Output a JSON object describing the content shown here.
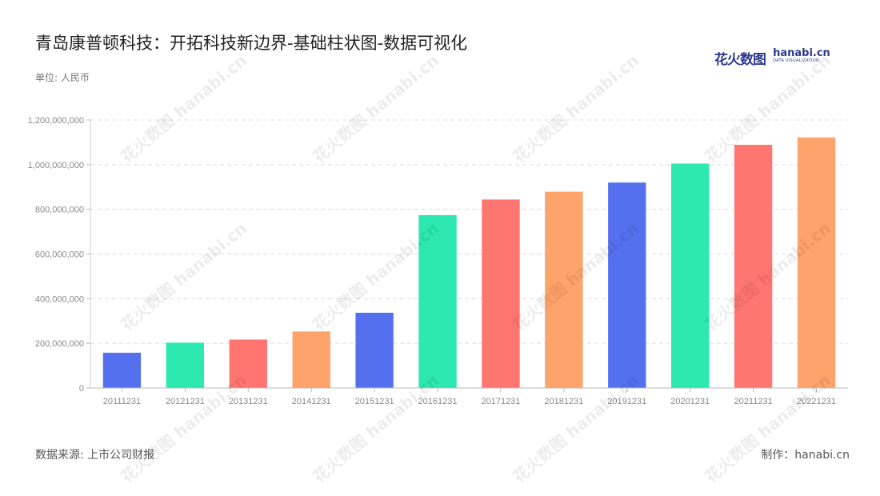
{
  "title": "青岛康普顿科技：开拓科技新边界-基础柱状图-数据可视化",
  "unit_label": "单位: 人民币",
  "logo": {
    "cn": "花火数图",
    "en": "hanabi.cn",
    "en_sub": "DATA VISUALIZATION"
  },
  "watermark": "花火数图 hanabi.cn",
  "source_label": "数据来源: 上市公司财报",
  "credit_label": "制作：hanabi.cn",
  "colors": [
    "#5470ee",
    "#2de8b0",
    "#ff7570",
    "#ffa36c"
  ],
  "chart_data": {
    "type": "bar",
    "title": "",
    "xlabel": "",
    "ylabel": "",
    "categories": [
      "20111231",
      "20121231",
      "20131231",
      "20141231",
      "20151231",
      "20161231",
      "20171231",
      "20181231",
      "20191231",
      "20201231",
      "20211231",
      "20221231"
    ],
    "values": [
      158000000,
      203000000,
      217000000,
      253000000,
      337000000,
      774000000,
      844000000,
      879000000,
      920000000,
      1005000000,
      1089000000,
      1122000000
    ],
    "ylim": [
      0,
      1200000000
    ],
    "yticks": [
      0,
      200000000,
      400000000,
      600000000,
      800000000,
      1000000000,
      1200000000
    ],
    "ytick_labels": [
      "0",
      "200,000,000",
      "400,000,000",
      "600,000,000",
      "800,000,000",
      "1,000,000,000",
      "1,200,000,000"
    ],
    "grid": true,
    "legend": "none"
  }
}
